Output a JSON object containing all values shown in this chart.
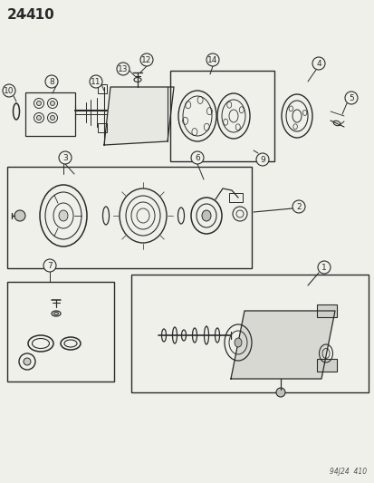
{
  "title": "24–410",
  "footer": "94J24  410",
  "bg_color": "#f5f5f0",
  "line_color": "#333333",
  "figsize": [
    4.14,
    5.33
  ],
  "dpi": 100
}
